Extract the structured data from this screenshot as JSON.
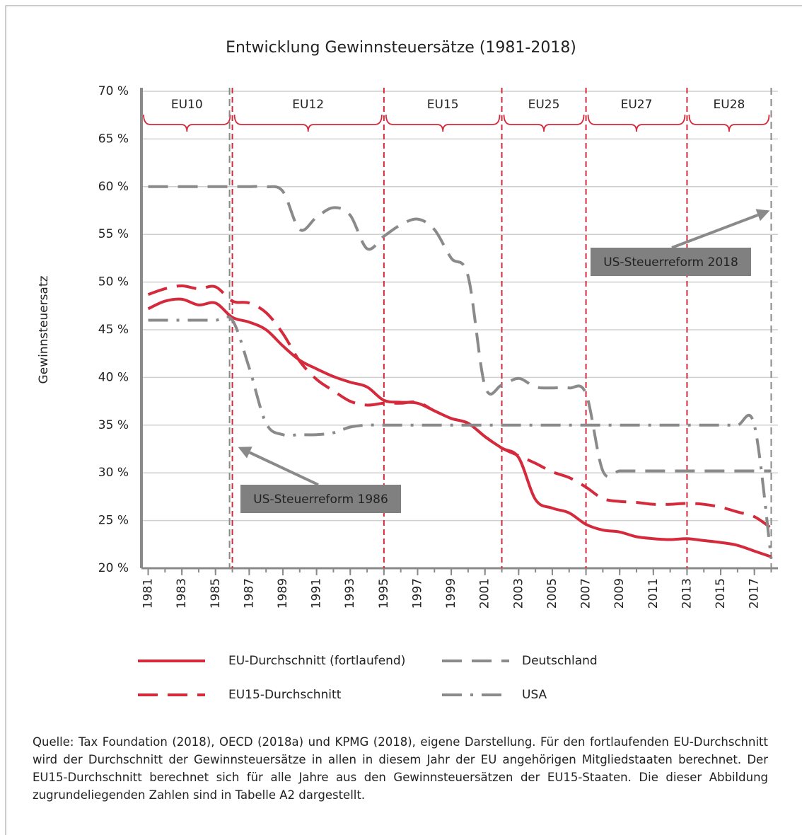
{
  "chart_data": {
    "type": "line",
    "title": "Entwicklung Gewinnsteuersätze (1981-2018)",
    "y_label": "Gewinnsteuersatz",
    "x": [
      1981,
      1982,
      1983,
      1984,
      1985,
      1986,
      1987,
      1988,
      1989,
      1990,
      1991,
      1992,
      1993,
      1994,
      1995,
      1996,
      1997,
      1998,
      1999,
      2000,
      2001,
      2002,
      2003,
      2004,
      2005,
      2006,
      2007,
      2008,
      2009,
      2010,
      2011,
      2012,
      2013,
      2014,
      2015,
      2016,
      2017,
      2018
    ],
    "xlim": [
      1980.6,
      2018.4
    ],
    "xticks": [
      1981,
      1983,
      1985,
      1987,
      1989,
      1991,
      1993,
      1995,
      1997,
      1999,
      2001,
      2003,
      2005,
      2007,
      2009,
      2011,
      2013,
      2015,
      2017
    ],
    "ylim": [
      20,
      70
    ],
    "yticks": [
      {
        "value": 20,
        "label": "20 %"
      },
      {
        "value": 25,
        "label": "25 %"
      },
      {
        "value": 30,
        "label": "30 %"
      },
      {
        "value": 35,
        "label": "35 %"
      },
      {
        "value": 40,
        "label": "40 %"
      },
      {
        "value": 45,
        "label": "45 %"
      },
      {
        "value": 50,
        "label": "50 %"
      },
      {
        "value": 55,
        "label": "55 %"
      },
      {
        "value": 60,
        "label": "60 %"
      },
      {
        "value": 65,
        "label": "65 %"
      },
      {
        "value": 70,
        "label": "70 %"
      }
    ],
    "grid": true,
    "series": [
      {
        "name": "EU-Durchschnitt (fortlaufend)",
        "color": "#d42a3c",
        "dash": "solid",
        "values": [
          47.2,
          48.0,
          48.2,
          47.6,
          47.8,
          46.3,
          45.8,
          45.0,
          43.3,
          41.8,
          40.9,
          40.1,
          39.5,
          39.0,
          37.6,
          37.4,
          37.3,
          36.5,
          35.7,
          35.2,
          33.8,
          32.6,
          31.6,
          27.2,
          26.3,
          25.8,
          24.6,
          24.0,
          23.8,
          23.3,
          23.1,
          23.0,
          23.1,
          22.9,
          22.7,
          22.4,
          21.8,
          21.2
        ]
      },
      {
        "name": "EU15-Durchschnitt",
        "color": "#d42a3c",
        "dash": "dashed",
        "values": [
          48.7,
          49.3,
          49.6,
          49.3,
          49.5,
          48.0,
          47.8,
          46.8,
          44.6,
          41.7,
          39.8,
          38.6,
          37.5,
          37.1,
          37.3,
          37.3,
          37.4,
          36.5,
          35.7,
          35.2,
          33.8,
          32.6,
          31.8,
          31.0,
          30.1,
          29.5,
          28.5,
          27.3,
          27.0,
          26.9,
          26.7,
          26.7,
          26.8,
          26.7,
          26.4,
          25.9,
          25.4,
          24.2
        ]
      },
      {
        "name": "Deutschland",
        "color": "#8a8a8a",
        "dash": "dashed",
        "values": [
          60,
          60,
          60,
          60,
          60,
          60,
          60,
          60,
          59.5,
          55.5,
          56.8,
          57.8,
          57.0,
          53.5,
          54.8,
          56.0,
          56.6,
          55.5,
          52.5,
          50.6,
          39.1,
          39.2,
          39.9,
          39.0,
          38.9,
          38.9,
          38.3,
          30.2,
          30.2,
          30.2,
          30.2,
          30.2,
          30.2,
          30.2,
          30.2,
          30.2,
          30.2,
          30.2
        ]
      },
      {
        "name": "USA",
        "color": "#8a8a8a",
        "dash": "dashdot",
        "values": [
          46,
          46,
          46,
          46,
          46,
          46,
          41,
          35.2,
          34,
          34,
          34,
          34.2,
          34.8,
          35,
          35,
          35,
          35,
          35,
          35,
          35,
          35,
          35,
          35,
          35,
          35,
          35,
          35,
          35,
          35,
          35,
          35,
          35,
          35,
          35,
          35,
          35,
          35,
          21
        ]
      }
    ],
    "periods": [
      {
        "label": "EU10",
        "start": 1981,
        "end": 1986
      },
      {
        "label": "EU12",
        "start": 1986,
        "end": 1995
      },
      {
        "label": "EU15",
        "start": 1995,
        "end": 2002
      },
      {
        "label": "EU25",
        "start": 2002,
        "end": 2007
      },
      {
        "label": "EU27",
        "start": 2007,
        "end": 2013
      },
      {
        "label": "EU28",
        "start": 2013,
        "end": 2018
      }
    ],
    "annotations": [
      {
        "text": "US-Steuerreform 1986",
        "x": 1986,
        "y": 32.7
      },
      {
        "text": "US-Steuerreform 2018",
        "x": 2018,
        "y": 57.5
      }
    ],
    "source": "Quelle: Tax Foundation (2018), OECD (2018a) und KPMG (2018), eigene Darstellung. Für den fortlaufenden EU-Durchschnitt wird der Durchschnitt der Gewinnsteuersätze in allen in diesem Jahr der EU angehörigen Mitgliedstaaten berechnet. Der EU15-Durchschnitt berechnet sich für alle Jahre aus den Gewinnsteuersätzen der EU15-Staaten. Die dieser Abbildung zugrundeliegenden Zahlen sind in Tabelle A2 dargestellt."
  }
}
